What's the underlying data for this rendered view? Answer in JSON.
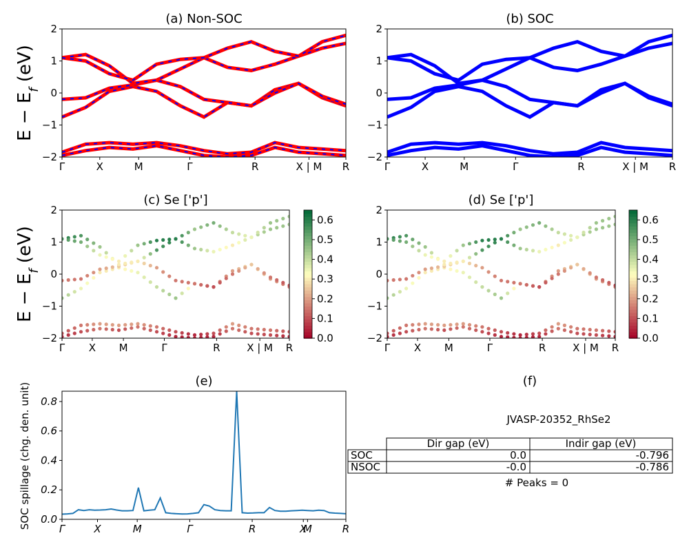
{
  "panels": {
    "a": {
      "title": "(a) Non-SOC"
    },
    "b": {
      "title": "(b) SOC"
    },
    "c": {
      "title": "(c)  Se ['p']"
    },
    "d": {
      "title": "(d) Se ['p']"
    },
    "e": {
      "title": "(e)"
    },
    "f": {
      "title": "(f)"
    }
  },
  "band_axis": {
    "ylabel_text": "E − E",
    "ylabel_sub": "f",
    "ylabel_unit": " (eV)",
    "ylim": [
      -2,
      2
    ],
    "yticks": [
      "2",
      "1",
      "0",
      "−1",
      "−2"
    ],
    "kpath": [
      "Γ",
      "X",
      "M",
      "Γ",
      "R",
      "X | M",
      "R"
    ]
  },
  "colorbar": {
    "ticks": [
      "0.6",
      "0.5",
      "0.4",
      "0.3",
      "0.2",
      "0.1",
      "0.0"
    ]
  },
  "spillage_axis": {
    "ylabel": "SOC spillage (chg. den. unit)",
    "yticks": [
      "0.8",
      "0.6",
      "0.4",
      "0.2",
      "0.0"
    ],
    "kpath": [
      "Γ",
      "X",
      "M",
      "Γ",
      "R",
      "X",
      "M",
      "R"
    ]
  },
  "table": {
    "caption": "JVASP-20352_RhSe2",
    "columns": [
      "Dir gap (eV)",
      "Indir gap (eV)"
    ],
    "rows": [
      {
        "label": "SOC",
        "dir": "0.0",
        "indir": "-0.796"
      },
      {
        "label": "NSOC",
        "dir": "-0.0",
        "indir": "-0.786"
      }
    ],
    "footer": "# Peaks = 0"
  },
  "colors": {
    "nonsoc_band": "#ff0000",
    "nonsoc_dash": "#0000ff",
    "soc_band": "#0000ff",
    "spillage_line": "#1f77b4",
    "colormap_low": "#a50026",
    "colormap_mid": "#ffffbf",
    "colormap_high": "#006837"
  },
  "chart_data": [
    {
      "panel": "a",
      "type": "line",
      "title": "(a) Non-SOC",
      "xlabel": "",
      "ylabel": "E − E_f (eV)",
      "ylim": [
        -2,
        2
      ],
      "xticks": [
        "Γ",
        "X",
        "M",
        "Γ",
        "R",
        "X | M",
        "R"
      ],
      "series": [
        {
          "values": [
            -0.75,
            -0.45,
            0.05,
            0.2,
            0.05,
            -0.4,
            -0.75,
            -0.3,
            -0.4,
            0.1,
            0.3,
            -0.15,
            -0.4
          ]
        },
        {
          "values": [
            -0.2,
            -0.15,
            0.15,
            0.25,
            0.4,
            0.2,
            -0.2,
            -0.3,
            -0.4,
            0.0,
            0.3,
            -0.1,
            -0.35
          ]
        },
        {
          "values": [
            1.1,
            1.2,
            0.85,
            0.3,
            0.4,
            0.75,
            1.1,
            0.8,
            0.7,
            0.9,
            1.15,
            1.4,
            1.55
          ]
        },
        {
          "values": [
            1.1,
            1.0,
            0.6,
            0.4,
            0.9,
            1.05,
            1.1,
            1.4,
            1.6,
            1.3,
            1.15,
            1.6,
            1.8
          ]
        },
        {
          "values": [
            -1.85,
            -1.6,
            -1.55,
            -1.6,
            -1.55,
            -1.65,
            -1.8,
            -1.9,
            -1.85,
            -1.55,
            -1.7,
            -1.75,
            -1.8
          ]
        },
        {
          "values": [
            -1.95,
            -1.8,
            -1.7,
            -1.75,
            -1.65,
            -1.8,
            -1.95,
            -2.0,
            -1.95,
            -1.7,
            -1.85,
            -1.9,
            -1.95
          ]
        }
      ]
    },
    {
      "panel": "b",
      "type": "line",
      "title": "(b) SOC",
      "xlabel": "",
      "ylabel": "",
      "ylim": [
        -2,
        2
      ],
      "xticks": [
        "Γ",
        "X",
        "M",
        "Γ",
        "R",
        "X | M",
        "R"
      ],
      "series": [
        {
          "values": [
            -0.75,
            -0.45,
            0.05,
            0.2,
            0.05,
            -0.4,
            -0.75,
            -0.3,
            -0.4,
            0.1,
            0.3,
            -0.15,
            -0.4
          ]
        },
        {
          "values": [
            -0.2,
            -0.15,
            0.15,
            0.25,
            0.4,
            0.2,
            -0.2,
            -0.3,
            -0.4,
            0.0,
            0.3,
            -0.1,
            -0.35
          ]
        },
        {
          "values": [
            1.1,
            1.2,
            0.85,
            0.3,
            0.4,
            0.75,
            1.1,
            0.8,
            0.7,
            0.9,
            1.15,
            1.4,
            1.55
          ]
        },
        {
          "values": [
            1.1,
            1.0,
            0.6,
            0.4,
            0.9,
            1.05,
            1.1,
            1.4,
            1.6,
            1.3,
            1.15,
            1.6,
            1.8
          ]
        },
        {
          "values": [
            -1.85,
            -1.6,
            -1.55,
            -1.6,
            -1.55,
            -1.65,
            -1.8,
            -1.9,
            -1.85,
            -1.55,
            -1.7,
            -1.75,
            -1.8
          ]
        },
        {
          "values": [
            -1.95,
            -1.8,
            -1.7,
            -1.75,
            -1.65,
            -1.8,
            -1.95,
            -2.0,
            -1.95,
            -1.7,
            -1.85,
            -1.9,
            -1.95
          ]
        }
      ]
    },
    {
      "panel": "c",
      "type": "scatter",
      "title": "(c)  Se ['p']",
      "xlabel": "",
      "ylabel": "E − E_f (eV)",
      "ylim": [
        -2,
        2
      ],
      "colorbar_range": [
        0.0,
        0.65
      ],
      "xticks": [
        "Γ",
        "X",
        "M",
        "Γ",
        "R",
        "X | M",
        "R"
      ],
      "series": [
        {
          "values": [
            -0.75,
            -0.45,
            0.05,
            0.2,
            0.05,
            -0.4,
            -0.75,
            -0.3,
            -0.4,
            0.1,
            0.3,
            -0.15,
            -0.4
          ],
          "weights": [
            0.45,
            0.35,
            0.3,
            0.3,
            0.35,
            0.4,
            0.45,
            0.25,
            0.15,
            0.2,
            0.3,
            0.2,
            0.15
          ]
        },
        {
          "values": [
            -0.2,
            -0.15,
            0.15,
            0.25,
            0.4,
            0.2,
            -0.2,
            -0.3,
            -0.4,
            0.0,
            0.3,
            -0.1,
            -0.35
          ],
          "weights": [
            0.15,
            0.15,
            0.2,
            0.25,
            0.3,
            0.2,
            0.15,
            0.15,
            0.1,
            0.15,
            0.25,
            0.15,
            0.1
          ]
        },
        {
          "values": [
            1.1,
            1.2,
            0.85,
            0.3,
            0.4,
            0.75,
            1.1,
            0.8,
            0.7,
            0.9,
            1.15,
            1.4,
            1.55
          ],
          "weights": [
            0.6,
            0.55,
            0.45,
            0.3,
            0.3,
            0.55,
            0.6,
            0.45,
            0.35,
            0.3,
            0.4,
            0.45,
            0.45
          ]
        },
        {
          "values": [
            1.1,
            1.0,
            0.6,
            0.4,
            0.9,
            1.05,
            1.1,
            1.4,
            1.6,
            1.3,
            1.15,
            1.6,
            1.8
          ],
          "weights": [
            0.55,
            0.5,
            0.35,
            0.3,
            0.45,
            0.6,
            0.6,
            0.45,
            0.5,
            0.4,
            0.35,
            0.45,
            0.45
          ]
        },
        {
          "values": [
            -1.85,
            -1.6,
            -1.55,
            -1.6,
            -1.55,
            -1.65,
            -1.8,
            -1.9,
            -1.85,
            -1.55,
            -1.7,
            -1.75,
            -1.8
          ],
          "weights": [
            0.1,
            0.15,
            0.2,
            0.2,
            0.2,
            0.15,
            0.1,
            0.05,
            0.1,
            0.2,
            0.15,
            0.15,
            0.1
          ]
        },
        {
          "values": [
            -1.95,
            -1.8,
            -1.7,
            -1.75,
            -1.65,
            -1.8,
            -1.95,
            -2.0,
            -1.95,
            -1.7,
            -1.85,
            -1.9,
            -1.95
          ],
          "weights": [
            0.05,
            0.1,
            0.15,
            0.1,
            0.15,
            0.1,
            0.05,
            0.05,
            0.05,
            0.15,
            0.1,
            0.1,
            0.05
          ]
        }
      ]
    },
    {
      "panel": "d",
      "type": "scatter",
      "title": "(d) Se ['p']",
      "xlabel": "",
      "ylabel": "",
      "ylim": [
        -2,
        2
      ],
      "colorbar_range": [
        0.0,
        0.65
      ],
      "xticks": [
        "Γ",
        "X",
        "M",
        "Γ",
        "R",
        "X | M",
        "R"
      ],
      "series": [
        {
          "values": [
            -0.75,
            -0.45,
            0.05,
            0.2,
            0.05,
            -0.4,
            -0.75,
            -0.3,
            -0.4,
            0.1,
            0.3,
            -0.15,
            -0.4
          ],
          "weights": [
            0.45,
            0.35,
            0.3,
            0.3,
            0.35,
            0.4,
            0.45,
            0.25,
            0.15,
            0.2,
            0.3,
            0.2,
            0.15
          ]
        },
        {
          "values": [
            -0.2,
            -0.15,
            0.15,
            0.25,
            0.4,
            0.2,
            -0.2,
            -0.3,
            -0.4,
            0.0,
            0.3,
            -0.1,
            -0.35
          ],
          "weights": [
            0.15,
            0.15,
            0.2,
            0.25,
            0.3,
            0.2,
            0.15,
            0.15,
            0.1,
            0.15,
            0.25,
            0.15,
            0.1
          ]
        },
        {
          "values": [
            1.1,
            1.2,
            0.85,
            0.3,
            0.4,
            0.75,
            1.1,
            0.8,
            0.7,
            0.9,
            1.15,
            1.4,
            1.55
          ],
          "weights": [
            0.6,
            0.55,
            0.45,
            0.3,
            0.3,
            0.55,
            0.6,
            0.45,
            0.35,
            0.3,
            0.4,
            0.45,
            0.45
          ]
        },
        {
          "values": [
            1.1,
            1.0,
            0.6,
            0.4,
            0.9,
            1.05,
            1.1,
            1.4,
            1.6,
            1.3,
            1.15,
            1.6,
            1.8
          ],
          "weights": [
            0.55,
            0.5,
            0.35,
            0.3,
            0.45,
            0.6,
            0.6,
            0.45,
            0.5,
            0.4,
            0.35,
            0.45,
            0.45
          ]
        },
        {
          "values": [
            -1.85,
            -1.6,
            -1.55,
            -1.6,
            -1.55,
            -1.65,
            -1.8,
            -1.9,
            -1.85,
            -1.55,
            -1.7,
            -1.75,
            -1.8
          ],
          "weights": [
            0.1,
            0.15,
            0.2,
            0.2,
            0.2,
            0.15,
            0.1,
            0.05,
            0.1,
            0.2,
            0.15,
            0.15,
            0.1
          ]
        },
        {
          "values": [
            -1.95,
            -1.8,
            -1.7,
            -1.75,
            -1.65,
            -1.8,
            -1.95,
            -2.0,
            -1.95,
            -1.7,
            -1.85,
            -1.9,
            -1.95
          ],
          "weights": [
            0.05,
            0.1,
            0.15,
            0.1,
            0.15,
            0.1,
            0.05,
            0.05,
            0.05,
            0.15,
            0.1,
            0.1,
            0.05
          ]
        }
      ]
    },
    {
      "panel": "e",
      "type": "line",
      "title": "(e)",
      "xlabel": "",
      "ylabel": "SOC spillage (chg. den. unit)",
      "ylim": [
        0,
        0.87
      ],
      "xticks": [
        "Γ",
        "X",
        "M",
        "Γ",
        "R",
        "X",
        "M",
        "R"
      ],
      "series": [
        {
          "values": [
            0.035,
            0.037,
            0.04,
            0.065,
            0.06,
            0.065,
            0.062,
            0.063,
            0.065,
            0.07,
            0.063,
            0.058,
            0.058,
            0.06,
            0.215,
            0.058,
            0.062,
            0.065,
            0.145,
            0.045,
            0.04,
            0.038,
            0.036,
            0.037,
            0.04,
            0.045,
            0.1,
            0.09,
            0.065,
            0.06,
            0.058,
            0.058,
            0.87,
            0.045,
            0.042,
            0.043,
            0.045,
            0.045,
            0.08,
            0.06,
            0.055,
            0.055,
            0.058,
            0.06,
            0.062,
            0.06,
            0.058,
            0.062,
            0.06,
            0.045,
            0.042,
            0.04,
            0.038
          ]
        }
      ]
    }
  ]
}
